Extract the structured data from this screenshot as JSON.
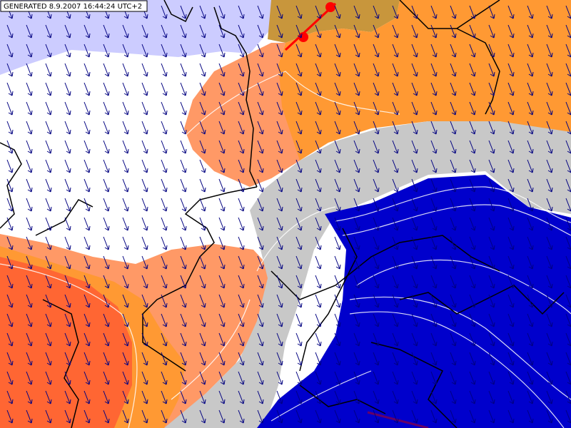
{
  "header": {
    "generated": "GENERATED 8.9.2007 16:44:24 UTC+2"
  }
}
